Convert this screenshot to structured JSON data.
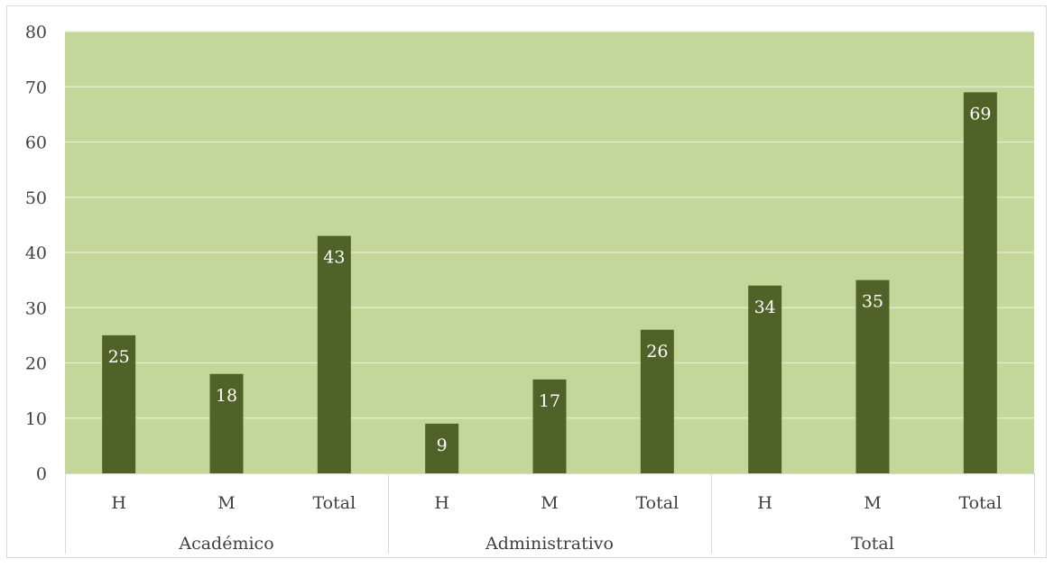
{
  "chart_data": {
    "type": "bar",
    "groups": [
      {
        "label": "Académico",
        "categories": [
          "H",
          "M",
          "Total"
        ],
        "values": [
          25,
          18,
          43
        ]
      },
      {
        "label": "Administrativo",
        "categories": [
          "H",
          "M",
          "Total"
        ],
        "values": [
          9,
          17,
          26
        ]
      },
      {
        "label": "Total",
        "categories": [
          "H",
          "M",
          "Total"
        ],
        "values": [
          34,
          35,
          69
        ]
      }
    ],
    "ylim": [
      0,
      80
    ],
    "yticks": [
      0,
      10,
      20,
      30,
      40,
      50,
      60,
      70,
      80
    ],
    "grid": true,
    "legend": "none",
    "colors": {
      "plot_background": "#c4d79b",
      "bar": "#4f6228",
      "gridline": "#e4ecd0",
      "data_label": "#ffffff",
      "axis_text": "#404040",
      "axis_line": "#d9d9d9"
    }
  }
}
